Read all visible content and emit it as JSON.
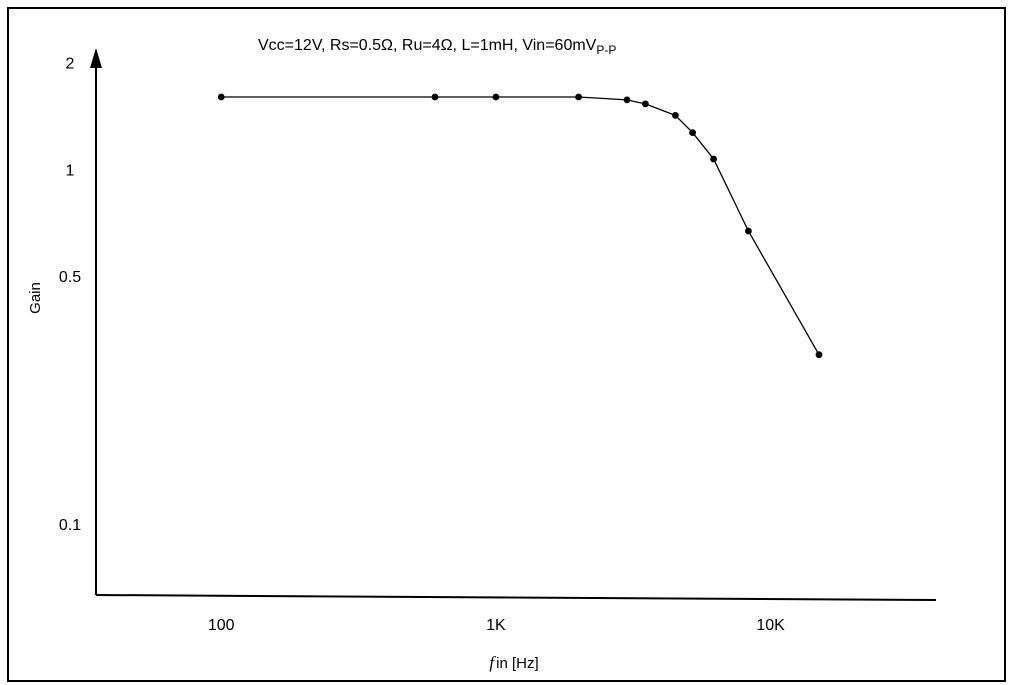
{
  "chart_data": {
    "type": "line",
    "title": "Vcc=12V, Rs=0.5Ω, Ru=4Ω, L=1mH, Vin=60mV",
    "title_subscript": "P-P",
    "xlabel_italic": "f",
    "xlabel_rest": "in [Hz]",
    "ylabel": "Gain",
    "xscale": "log",
    "yscale": "log",
    "xlim": [
      35,
      40000
    ],
    "ylim": [
      0.063,
      2.2
    ],
    "x_ticks": [
      {
        "value": 100,
        "label": "100"
      },
      {
        "value": 1000,
        "label": "1K"
      },
      {
        "value": 10000,
        "label": "10K"
      }
    ],
    "y_ticks": [
      {
        "value": 2,
        "label": "2"
      },
      {
        "value": 1,
        "label": "1"
      },
      {
        "value": 0.5,
        "label": "0.5"
      },
      {
        "value": 0.1,
        "label": "0.1"
      }
    ],
    "grid": false,
    "legend": "none",
    "line_color": "#000000",
    "series": [
      {
        "x": [
          100,
          600,
          1000,
          2000,
          3000,
          3500,
          4500,
          5200,
          6200,
          8300,
          15000
        ],
        "y": [
          1.6,
          1.6,
          1.6,
          1.6,
          1.57,
          1.53,
          1.42,
          1.27,
          1.07,
          0.67,
          0.3
        ]
      }
    ]
  }
}
